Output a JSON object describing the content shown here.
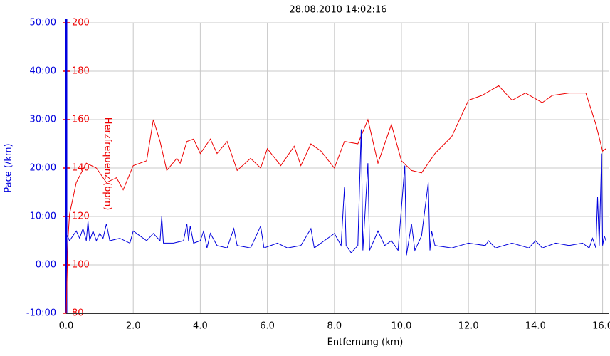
{
  "chart_data": {
    "type": "line",
    "title": "28.08.2010 14:02:16",
    "x_label": "Entfernung (km)",
    "y_label": "Pace (/km)",
    "y2_label": "Herzfrequenz (bpm)",
    "grid": true,
    "xlim": [
      0,
      16.2
    ],
    "xticks": [
      {
        "value": 0,
        "label": "0.0"
      },
      {
        "value": 2,
        "label": "2.0"
      },
      {
        "value": 4,
        "label": "4.0"
      },
      {
        "value": 6,
        "label": "6.0"
      },
      {
        "value": 8,
        "label": "8.0"
      },
      {
        "value": 10,
        "label": "10.0"
      },
      {
        "value": 12,
        "label": "12.0"
      },
      {
        "value": 14,
        "label": "14.0"
      },
      {
        "value": 16,
        "label": "16.0"
      }
    ],
    "ylim": [
      -10,
      50
    ],
    "yticks": [
      {
        "value": -10,
        "label": "-10:00"
      },
      {
        "value": 0,
        "label": "0:00"
      },
      {
        "value": 10,
        "label": "10:00"
      },
      {
        "value": 20,
        "label": "20:00"
      },
      {
        "value": 30,
        "label": "30:00"
      },
      {
        "value": 40,
        "label": "40:00"
      },
      {
        "value": 50,
        "label": "50:00"
      }
    ],
    "y2lim": [
      80,
      200
    ],
    "y2ticks": [
      80,
      100,
      120,
      140,
      160,
      180,
      200
    ],
    "y_color": "#0000dd",
    "y2_color": "#ee0000",
    "series": [
      {
        "name": "Herzfrequenz",
        "color": "#ee0000",
        "axis": "y2",
        "x": [
          0,
          0.05,
          0.1,
          0.3,
          0.6,
          0.9,
          1.2,
          1.5,
          1.7,
          2.0,
          2.4,
          2.6,
          2.8,
          3.0,
          3.3,
          3.4,
          3.6,
          3.8,
          4.0,
          4.3,
          4.5,
          4.8,
          5.1,
          5.5,
          5.8,
          6.0,
          6.4,
          6.8,
          7.0,
          7.3,
          7.6,
          8.0,
          8.3,
          8.7,
          9.0,
          9.3,
          9.7,
          10.0,
          10.3,
          10.6,
          11.0,
          11.5,
          12.0,
          12.4,
          12.9,
          13.3,
          13.7,
          14.2,
          14.5,
          15.0,
          15.5,
          15.8,
          16.0,
          16.1
        ],
        "values": [
          80,
          110,
          121,
          134,
          142,
          140,
          134,
          136,
          131,
          141,
          143,
          160,
          151,
          139,
          144,
          142,
          151,
          152,
          146,
          152,
          146,
          151,
          139,
          144,
          140,
          148,
          141,
          149,
          141,
          150,
          147,
          140,
          151,
          150,
          160,
          142,
          158,
          143,
          139,
          138,
          146,
          153,
          168,
          170,
          174,
          168,
          171,
          167,
          170,
          171,
          171,
          158,
          147,
          148
        ]
      },
      {
        "name": "Pace",
        "color": "#0000dd",
        "axis": "y",
        "x": [
          0,
          0.1,
          0.3,
          0.4,
          0.5,
          0.6,
          0.65,
          0.7,
          0.8,
          0.9,
          1.0,
          1.1,
          1.2,
          1.3,
          1.6,
          1.9,
          2.0,
          2.2,
          2.4,
          2.6,
          2.8,
          2.85,
          2.9,
          3.2,
          3.5,
          3.6,
          3.65,
          3.7,
          3.8,
          4.0,
          4.1,
          4.2,
          4.3,
          4.5,
          4.8,
          5.0,
          5.1,
          5.5,
          5.8,
          5.9,
          6.3,
          6.6,
          7.0,
          7.3,
          7.4,
          7.7,
          8.0,
          8.2,
          8.3,
          8.35,
          8.5,
          8.7,
          8.8,
          8.85,
          9.0,
          9.05,
          9.3,
          9.5,
          9.7,
          9.9,
          10.1,
          10.15,
          10.3,
          10.4,
          10.6,
          10.8,
          10.85,
          10.9,
          11.0,
          11.5,
          12.0,
          12.5,
          12.6,
          12.8,
          13.3,
          13.8,
          14.0,
          14.2,
          14.6,
          15.0,
          15.4,
          15.6,
          15.7,
          15.8,
          15.85,
          15.9,
          15.97,
          16.0,
          16.05,
          16.1
        ],
        "values": [
          6.5,
          5,
          7,
          5.5,
          7.5,
          5,
          9,
          5,
          7,
          5,
          6.5,
          5.5,
          8.5,
          5,
          5.5,
          4.5,
          7,
          6,
          5,
          6.5,
          5,
          10,
          4.5,
          4.5,
          5,
          8.5,
          5,
          8,
          4.5,
          5,
          7,
          3.5,
          6.5,
          4,
          3.5,
          7.5,
          4,
          3.5,
          8,
          3.5,
          4.5,
          3.5,
          4,
          7.5,
          3.5,
          5,
          6.5,
          4,
          16,
          4,
          2.5,
          4,
          28,
          3,
          21,
          3,
          7,
          4,
          5,
          3,
          20.5,
          2,
          8.5,
          3,
          6,
          17,
          3,
          7,
          4,
          3.5,
          4.5,
          4,
          5,
          3.5,
          4.5,
          3.5,
          5,
          3.5,
          4.5,
          4,
          4.5,
          3.5,
          5.5,
          3.5,
          14,
          4,
          23,
          4,
          6,
          5
        ]
      }
    ]
  }
}
